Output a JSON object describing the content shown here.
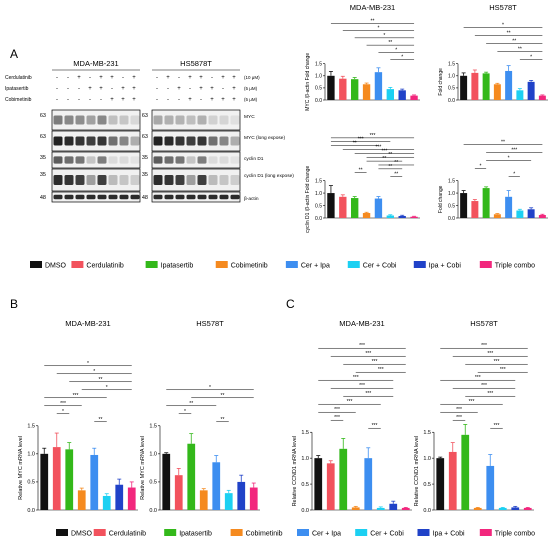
{
  "panel_labels": {
    "a": "A",
    "b": "B",
    "c": "C"
  },
  "colors": {
    "DMSO": "#111111",
    "Cerdulatinib": "#f2525d",
    "Ipatasertib": "#33b81a",
    "Cobimetinib": "#f58a1f",
    "Cer + Ipa": "#3d8ef0",
    "Cer + Cobi": "#1cd0f2",
    "Ipa + Cobi": "#2042c8",
    "Triple combo": "#f2277d"
  },
  "legend": {
    "items": [
      "DMSO",
      "Cerdulatinib",
      "Ipatasertib",
      "Cobimetinib",
      "Cer + Ipa",
      "Cer + Cobi",
      "Ipa + Cobi",
      "Triple combo"
    ]
  },
  "blot": {
    "title_left": "MDA-MB-231",
    "title_right": "HS5878T",
    "treatments": [
      {
        "label": "Cerdulatinib",
        "conc": "(10 μM)",
        "signs": [
          "-",
          "-",
          "+",
          "-",
          "+",
          "+",
          "-",
          "+"
        ]
      },
      {
        "label": "Ipatasertib",
        "conc": "(5 μM)",
        "signs": [
          "-",
          "-",
          "-",
          "+",
          "+",
          "-",
          "+",
          "+"
        ]
      },
      {
        "label": "Cobimetinib",
        "conc": "(5 μM)",
        "signs": [
          "-",
          "-",
          "-",
          "-",
          "-",
          "+",
          "+",
          "+"
        ]
      }
    ],
    "signs_right": [
      [
        "-",
        "+",
        "-",
        "+",
        "+",
        "-",
        "+",
        "+"
      ],
      [
        "-",
        "-",
        "+",
        "-",
        "+",
        "+",
        "-",
        "+"
      ],
      [
        "-",
        "-",
        "-",
        "+",
        "-",
        "+",
        "+",
        "+"
      ]
    ],
    "rows": [
      {
        "label": "MYC",
        "marker": "63"
      },
      {
        "label": "MYC (long expose)",
        "marker": "63"
      },
      {
        "label": "cyclin D1",
        "marker": "35"
      },
      {
        "label": "cyclin D1 (long expose)",
        "marker": "35"
      },
      {
        "label": "β-actin",
        "marker": "48"
      }
    ]
  },
  "chart_data": [
    {
      "id": "A1",
      "type": "bar",
      "title": "MDA-MB-231",
      "ylabel": "MYC /β-actin Fold change",
      "ylim": [
        0,
        1.5
      ],
      "yticks": [
        "0.0",
        "0.5",
        "1.0",
        "1.5"
      ],
      "values": [
        1.0,
        0.88,
        0.86,
        0.65,
        1.15,
        0.45,
        0.4,
        0.18
      ],
      "errors": [
        0.18,
        0.1,
        0.07,
        0.05,
        0.18,
        0.07,
        0.05,
        0.03
      ],
      "brackets": [
        {
          "from": 0,
          "to": 7,
          "label": "**"
        },
        {
          "from": 1,
          "to": 7,
          "label": "*"
        },
        {
          "from": 2,
          "to": 7,
          "label": "*"
        },
        {
          "from": 3,
          "to": 7,
          "label": "**"
        },
        {
          "from": 4,
          "to": 7,
          "label": "*"
        },
        {
          "from": 5,
          "to": 7,
          "label": "*"
        }
      ]
    },
    {
      "id": "A2",
      "type": "bar",
      "title": "HS578T",
      "ylabel": "Fold change",
      "ylim": [
        0,
        1.5
      ],
      "yticks": [
        "0.0",
        "0.5",
        "1.0",
        "1.5"
      ],
      "values": [
        1.0,
        1.12,
        1.1,
        0.65,
        1.2,
        0.4,
        0.75,
        0.18
      ],
      "errors": [
        0.12,
        0.12,
        0.05,
        0.04,
        0.22,
        0.07,
        0.06,
        0.03
      ],
      "brackets": [
        {
          "from": 0,
          "to": 7,
          "label": "*"
        },
        {
          "from": 1,
          "to": 7,
          "label": "**"
        },
        {
          "from": 2,
          "to": 7,
          "label": "**"
        },
        {
          "from": 3,
          "to": 7,
          "label": "**"
        },
        {
          "from": 5,
          "to": 7,
          "label": "*"
        }
      ]
    },
    {
      "id": "A3",
      "type": "bar",
      "title": "",
      "ylabel": "cyclin D1 /β-actin Fold change",
      "ylim": [
        0,
        1.5
      ],
      "yticks": [
        "0.0",
        "0.5",
        "1.0",
        "1.5"
      ],
      "values": [
        1.0,
        0.85,
        0.8,
        0.2,
        0.78,
        0.1,
        0.08,
        0.05
      ],
      "errors": [
        0.3,
        0.08,
        0.06,
        0.03,
        0.08,
        0.03,
        0.03,
        0.02
      ],
      "brackets": [
        {
          "from": 0,
          "to": 7,
          "label": "***"
        },
        {
          "from": 0,
          "to": 5,
          "label": "***"
        },
        {
          "from": 0,
          "to": 4,
          "label": "**"
        },
        {
          "from": 1,
          "to": 7,
          "label": "***"
        },
        {
          "from": 2,
          "to": 7,
          "label": "***"
        },
        {
          "from": 3,
          "to": 7,
          "label": "**"
        },
        {
          "from": 3,
          "to": 6,
          "label": "**"
        },
        {
          "from": 4,
          "to": 7,
          "label": "**"
        },
        {
          "from": 4,
          "to": 6,
          "label": "**"
        },
        {
          "from": 2,
          "to": 3,
          "label": "**"
        },
        {
          "from": 5,
          "to": 6,
          "label": "**"
        }
      ]
    },
    {
      "id": "A4",
      "type": "bar",
      "title": "",
      "ylabel": "Fold change",
      "ylim": [
        0,
        1.5
      ],
      "yticks": [
        "0.0",
        "0.5",
        "1.0",
        "1.5"
      ],
      "values": [
        1.0,
        0.68,
        1.2,
        0.15,
        0.85,
        0.3,
        0.35,
        0.12
      ],
      "errors": [
        0.1,
        0.06,
        0.05,
        0.03,
        0.25,
        0.05,
        0.06,
        0.03
      ],
      "brackets": [
        {
          "from": 0,
          "to": 7,
          "label": "**"
        },
        {
          "from": 2,
          "to": 7,
          "label": "***"
        },
        {
          "from": 2,
          "to": 6,
          "label": "*"
        },
        {
          "from": 1,
          "to": 2,
          "label": "*"
        },
        {
          "from": 4,
          "to": 5,
          "label": "*"
        }
      ]
    },
    {
      "id": "B1",
      "type": "bar",
      "title": "MDA-MB-231",
      "ylabel": "Relative MYC mRNA level",
      "ylim": [
        0,
        1.5
      ],
      "yticks": [
        "0.0",
        "0.5",
        "1.0",
        "1.5"
      ],
      "values": [
        1.0,
        1.12,
        1.08,
        0.35,
        0.98,
        0.25,
        0.45,
        0.4
      ],
      "errors": [
        0.1,
        0.25,
        0.12,
        0.04,
        0.12,
        0.04,
        0.1,
        0.1
      ],
      "brackets": [
        {
          "from": 0,
          "to": 7,
          "label": "*"
        },
        {
          "from": 1,
          "to": 7,
          "label": "*"
        },
        {
          "from": 2,
          "to": 7,
          "label": "**"
        },
        {
          "from": 3,
          "to": 7,
          "label": "*"
        },
        {
          "from": 0,
          "to": 5,
          "label": "***"
        },
        {
          "from": 0,
          "to": 3,
          "label": "***"
        },
        {
          "from": 1,
          "to": 2,
          "label": "*"
        },
        {
          "from": 4,
          "to": 5,
          "label": "**"
        }
      ]
    },
    {
      "id": "B2",
      "type": "bar",
      "title": "HS578T",
      "ylabel": "Relative MYC mRNA level",
      "ylim": [
        0,
        1.5
      ],
      "yticks": [
        "0.0",
        "0.5",
        "1.0",
        "1.5"
      ],
      "values": [
        1.0,
        0.62,
        1.18,
        0.35,
        0.85,
        0.3,
        0.5,
        0.4
      ],
      "errors": [
        0.02,
        0.12,
        0.18,
        0.03,
        0.12,
        0.05,
        0.12,
        0.08
      ],
      "brackets": [
        {
          "from": 0,
          "to": 7,
          "label": "*"
        },
        {
          "from": 2,
          "to": 7,
          "label": "**"
        },
        {
          "from": 0,
          "to": 4,
          "label": "**"
        },
        {
          "from": 1,
          "to": 2,
          "label": "*"
        },
        {
          "from": 4,
          "to": 5,
          "label": "**"
        }
      ]
    },
    {
      "id": "C1",
      "type": "bar",
      "title": "MDA-MB-231",
      "ylabel": "Relative CCND1 mRNA level",
      "ylim": [
        0,
        1.5
      ],
      "yticks": [
        "0.0",
        "0.5",
        "1.0",
        "1.5"
      ],
      "values": [
        1.0,
        0.9,
        1.18,
        0.05,
        1.0,
        0.04,
        0.12,
        0.04
      ],
      "errors": [
        0.05,
        0.05,
        0.2,
        0.02,
        0.2,
        0.02,
        0.05,
        0.01
      ],
      "brackets": [
        {
          "from": 0,
          "to": 7,
          "label": "***"
        },
        {
          "from": 1,
          "to": 7,
          "label": "***"
        },
        {
          "from": 2,
          "to": 7,
          "label": "***"
        },
        {
          "from": 3,
          "to": 7,
          "label": "***"
        },
        {
          "from": 0,
          "to": 6,
          "label": "***"
        },
        {
          "from": 1,
          "to": 6,
          "label": "***"
        },
        {
          "from": 2,
          "to": 6,
          "label": "***"
        },
        {
          "from": 0,
          "to": 5,
          "label": "***"
        },
        {
          "from": 0,
          "to": 3,
          "label": "***"
        },
        {
          "from": 1,
          "to": 2,
          "label": "***"
        },
        {
          "from": 4,
          "to": 5,
          "label": "***"
        }
      ]
    },
    {
      "id": "C2",
      "type": "bar",
      "title": "HS578T",
      "ylabel": "Relative CCND1 mRNA level",
      "ylim": [
        0,
        1.5
      ],
      "yticks": [
        "0.0",
        "0.5",
        "1.0",
        "1.5"
      ],
      "values": [
        1.0,
        1.12,
        1.45,
        0.04,
        0.85,
        0.04,
        0.05,
        0.04
      ],
      "errors": [
        0.02,
        0.18,
        0.2,
        0.01,
        0.22,
        0.01,
        0.02,
        0.01
      ],
      "brackets": [
        {
          "from": 0,
          "to": 7,
          "label": "***"
        },
        {
          "from": 1,
          "to": 7,
          "label": "***"
        },
        {
          "from": 2,
          "to": 7,
          "label": "***"
        },
        {
          "from": 3,
          "to": 7,
          "label": "***"
        },
        {
          "from": 0,
          "to": 6,
          "label": "***"
        },
        {
          "from": 1,
          "to": 6,
          "label": "***"
        },
        {
          "from": 2,
          "to": 6,
          "label": "***"
        },
        {
          "from": 0,
          "to": 5,
          "label": "***"
        },
        {
          "from": 0,
          "to": 3,
          "label": "***"
        },
        {
          "from": 1,
          "to": 2,
          "label": "***"
        },
        {
          "from": 4,
          "to": 5,
          "label": "***"
        }
      ]
    }
  ]
}
